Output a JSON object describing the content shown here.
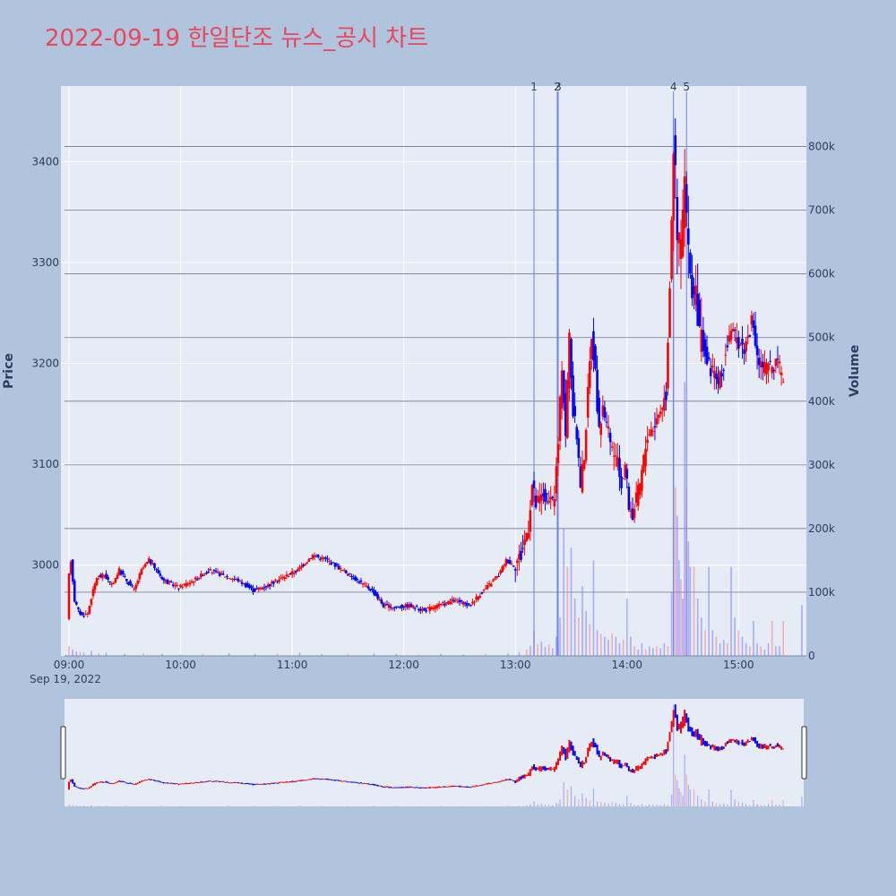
{
  "title": "2022-09-19 한일단조 뉴스_공시 차트",
  "colors": {
    "page_bg": "#b0c4de",
    "plot_bg": "#e5ecf6",
    "up": "#ff0000",
    "down": "#0000ff",
    "title": "#e8475c",
    "text": "#2a3f5f",
    "event_line": "#6a7ef0"
  },
  "chart_data": {
    "type": "candlestick",
    "title": "2022-09-19 한일단조 뉴스_공시 차트",
    "ylabel": "Price",
    "y2label": "Volume",
    "date_label": "Sep 19, 2022",
    "grid": true,
    "price_range": [
      2910,
      3475
    ],
    "volume_range": [
      0,
      895000
    ],
    "x_range_minutes": [
      540,
      935
    ],
    "x_ticks": [
      "09:00",
      "10:00",
      "11:00",
      "12:00",
      "13:00",
      "14:00",
      "15:00"
    ],
    "x_tick_minutes": [
      540,
      600,
      660,
      720,
      780,
      840,
      900
    ],
    "price_ticks": [
      "3000",
      "3100",
      "3200",
      "3300",
      "3400"
    ],
    "price_tick_values": [
      3000,
      3100,
      3200,
      3300,
      3400
    ],
    "volume_ticks": [
      "0",
      "100k",
      "200k",
      "300k",
      "400k",
      "500k",
      "600k",
      "700k",
      "800k"
    ],
    "volume_tick_values": [
      0,
      100000,
      200000,
      300000,
      400000,
      500000,
      600000,
      700000,
      800000
    ],
    "events": [
      {
        "label": "1",
        "minute": 790
      },
      {
        "label": "2",
        "minute": 802.5
      },
      {
        "label": "3",
        "minute": 803
      },
      {
        "label": "4",
        "minute": 865
      },
      {
        "label": "5",
        "minute": 872
      }
    ],
    "price_path": [
      [
        540,
        2945
      ],
      [
        541,
        2990
      ],
      [
        542,
        3005
      ],
      [
        544,
        2965
      ],
      [
        546,
        2955
      ],
      [
        548,
        2950
      ],
      [
        551,
        2952
      ],
      [
        553,
        2968
      ],
      [
        556,
        2988
      ],
      [
        560,
        2990
      ],
      [
        564,
        2980
      ],
      [
        568,
        2995
      ],
      [
        572,
        2985
      ],
      [
        576,
        2975
      ],
      [
        580,
        2995
      ],
      [
        584,
        3005
      ],
      [
        588,
        2995
      ],
      [
        592,
        2985
      ],
      [
        600,
        2978
      ],
      [
        608,
        2985
      ],
      [
        616,
        2995
      ],
      [
        624,
        2990
      ],
      [
        632,
        2985
      ],
      [
        640,
        2975
      ],
      [
        648,
        2980
      ],
      [
        656,
        2988
      ],
      [
        664,
        2995
      ],
      [
        672,
        3010
      ],
      [
        680,
        3005
      ],
      [
        688,
        2995
      ],
      [
        696,
        2985
      ],
      [
        704,
        2975
      ],
      [
        710,
        2960
      ],
      [
        716,
        2958
      ],
      [
        724,
        2960
      ],
      [
        732,
        2955
      ],
      [
        740,
        2960
      ],
      [
        748,
        2965
      ],
      [
        756,
        2960
      ],
      [
        764,
        2975
      ],
      [
        772,
        2990
      ],
      [
        776,
        3005
      ],
      [
        780,
        3000
      ],
      [
        784,
        3010
      ],
      [
        788,
        3040
      ],
      [
        790,
        3080
      ],
      [
        792,
        3060
      ],
      [
        796,
        3070
      ],
      [
        800,
        3060
      ],
      [
        802,
        3070
      ],
      [
        804,
        3120
      ],
      [
        806,
        3200
      ],
      [
        808,
        3130
      ],
      [
        810,
        3230
      ],
      [
        812,
        3150
      ],
      [
        814,
        3130
      ],
      [
        816,
        3080
      ],
      [
        818,
        3110
      ],
      [
        820,
        3170
      ],
      [
        822,
        3230
      ],
      [
        824,
        3190
      ],
      [
        826,
        3130
      ],
      [
        828,
        3160
      ],
      [
        832,
        3120
      ],
      [
        836,
        3100
      ],
      [
        838,
        3080
      ],
      [
        840,
        3100
      ],
      [
        842,
        3060
      ],
      [
        844,
        3050
      ],
      [
        848,
        3080
      ],
      [
        852,
        3130
      ],
      [
        856,
        3140
      ],
      [
        860,
        3160
      ],
      [
        862,
        3170
      ],
      [
        864,
        3280
      ],
      [
        866,
        3420
      ],
      [
        867,
        3380
      ],
      [
        868,
        3320
      ],
      [
        870,
        3320
      ],
      [
        872,
        3380
      ],
      [
        874,
        3300
      ],
      [
        876,
        3280
      ],
      [
        878,
        3260
      ],
      [
        880,
        3230
      ],
      [
        882,
        3220
      ],
      [
        884,
        3200
      ],
      [
        888,
        3190
      ],
      [
        890,
        3180
      ],
      [
        892,
        3190
      ],
      [
        896,
        3230
      ],
      [
        900,
        3225
      ],
      [
        904,
        3215
      ],
      [
        908,
        3240
      ],
      [
        912,
        3200
      ],
      [
        916,
        3195
      ],
      [
        920,
        3200
      ],
      [
        923,
        3195
      ],
      [
        924,
        3185
      ]
    ],
    "volume_bars": [
      [
        540,
        15000
      ],
      [
        542,
        10000
      ],
      [
        544,
        7000
      ],
      [
        546,
        6000
      ],
      [
        548,
        5000
      ],
      [
        552,
        8000
      ],
      [
        556,
        4000
      ],
      [
        560,
        5000
      ],
      [
        570,
        3000
      ],
      [
        580,
        4000
      ],
      [
        590,
        3000
      ],
      [
        600,
        2000
      ],
      [
        612,
        3000
      ],
      [
        626,
        4000
      ],
      [
        640,
        3000
      ],
      [
        652,
        4000
      ],
      [
        664,
        5000
      ],
      [
        676,
        3000
      ],
      [
        690,
        3000
      ],
      [
        704,
        4000
      ],
      [
        716,
        3000
      ],
      [
        728,
        2000
      ],
      [
        740,
        3000
      ],
      [
        752,
        2000
      ],
      [
        764,
        3000
      ],
      [
        776,
        4000
      ],
      [
        782,
        6000
      ],
      [
        786,
        10000
      ],
      [
        788,
        16000
      ],
      [
        790,
        40000
      ],
      [
        792,
        18000
      ],
      [
        794,
        22000
      ],
      [
        796,
        14000
      ],
      [
        798,
        18000
      ],
      [
        800,
        12000
      ],
      [
        802,
        30000
      ],
      [
        803,
        22000
      ],
      [
        804,
        60000
      ],
      [
        806,
        200000
      ],
      [
        808,
        140000
      ],
      [
        810,
        170000
      ],
      [
        812,
        90000
      ],
      [
        814,
        60000
      ],
      [
        816,
        110000
      ],
      [
        818,
        70000
      ],
      [
        820,
        50000
      ],
      [
        822,
        150000
      ],
      [
        824,
        40000
      ],
      [
        826,
        35000
      ],
      [
        828,
        30000
      ],
      [
        830,
        25000
      ],
      [
        832,
        35000
      ],
      [
        834,
        30000
      ],
      [
        836,
        20000
      ],
      [
        838,
        25000
      ],
      [
        840,
        90000
      ],
      [
        842,
        30000
      ],
      [
        844,
        15000
      ],
      [
        846,
        10000
      ],
      [
        848,
        20000
      ],
      [
        850,
        10000
      ],
      [
        852,
        15000
      ],
      [
        854,
        12000
      ],
      [
        856,
        15000
      ],
      [
        858,
        12000
      ],
      [
        860,
        20000
      ],
      [
        862,
        15000
      ],
      [
        864,
        100000
      ],
      [
        865,
        845000
      ],
      [
        866,
        265000
      ],
      [
        867,
        220000
      ],
      [
        868,
        150000
      ],
      [
        869,
        120000
      ],
      [
        870,
        90000
      ],
      [
        871,
        430000
      ],
      [
        872,
        265000
      ],
      [
        873,
        180000
      ],
      [
        874,
        140000
      ],
      [
        876,
        140000
      ],
      [
        878,
        90000
      ],
      [
        880,
        60000
      ],
      [
        882,
        40000
      ],
      [
        884,
        140000
      ],
      [
        886,
        40000
      ],
      [
        888,
        30000
      ],
      [
        890,
        20000
      ],
      [
        892,
        25000
      ],
      [
        894,
        20000
      ],
      [
        896,
        140000
      ],
      [
        898,
        60000
      ],
      [
        900,
        40000
      ],
      [
        902,
        30000
      ],
      [
        904,
        20000
      ],
      [
        906,
        15000
      ],
      [
        908,
        55000
      ],
      [
        910,
        20000
      ],
      [
        912,
        15000
      ],
      [
        914,
        10000
      ],
      [
        916,
        20000
      ],
      [
        918,
        55000
      ],
      [
        920,
        15000
      ],
      [
        922,
        15000
      ],
      [
        924,
        55000
      ],
      [
        934,
        80000
      ]
    ]
  }
}
